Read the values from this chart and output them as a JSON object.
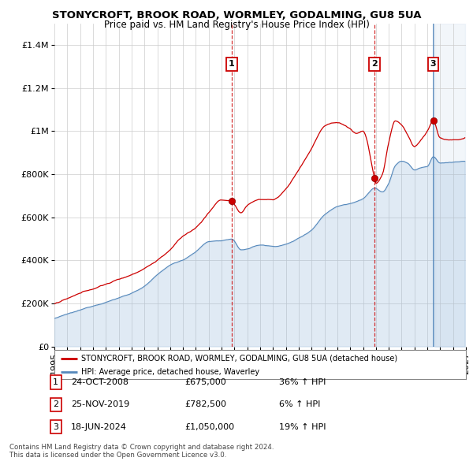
{
  "title1": "STONYCROFT, BROOK ROAD, WORMLEY, GODALMING, GU8 5UA",
  "title2": "Price paid vs. HM Land Registry's House Price Index (HPI)",
  "legend_red": "STONYCROFT, BROOK ROAD, WORMLEY, GODALMING, GU8 5UA (detached house)",
  "legend_blue": "HPI: Average price, detached house, Waverley",
  "sale1_label": "1",
  "sale1_date": "24-OCT-2008",
  "sale1_price": "£675,000",
  "sale1_hpi": "36% ↑ HPI",
  "sale2_label": "2",
  "sale2_date": "25-NOV-2019",
  "sale2_price": "£782,500",
  "sale2_hpi": "6% ↑ HPI",
  "sale3_label": "3",
  "sale3_date": "18-JUN-2024",
  "sale3_price": "£1,050,000",
  "sale3_hpi": "19% ↑ HPI",
  "footnote1": "Contains HM Land Registry data © Crown copyright and database right 2024.",
  "footnote2": "This data is licensed under the Open Government Licence v3.0.",
  "red_color": "#cc0000",
  "blue_color": "#5588bb",
  "fill_color": "#ddeeff",
  "ylim_max": 1500000,
  "background_color": "#ffffff",
  "sale_years": [
    2008.79,
    2019.9,
    2024.46
  ],
  "sale_prices": [
    675000,
    782500,
    1050000
  ],
  "xlim": [
    1995,
    2027
  ],
  "grid_color": "#cccccc"
}
